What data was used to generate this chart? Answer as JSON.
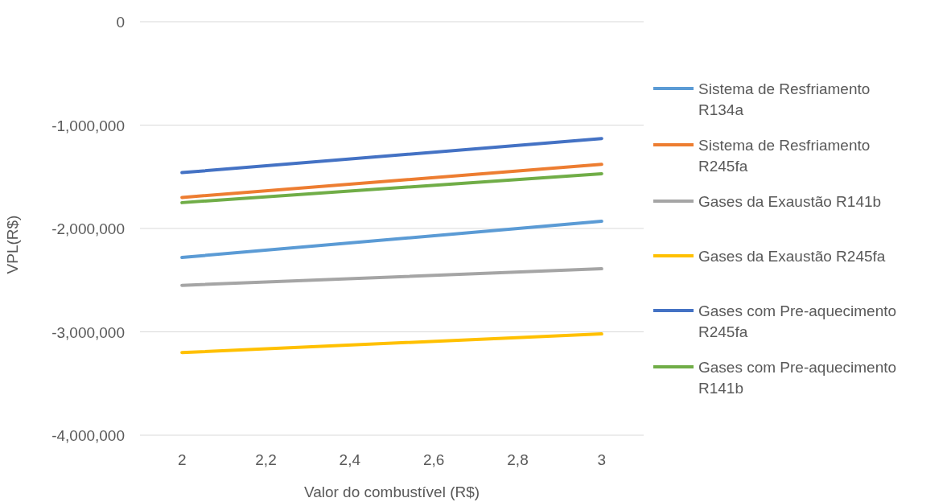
{
  "chart_data": {
    "type": "line",
    "xlabel": "Valor do combustível (R$)",
    "ylabel": "VPL(R$)",
    "xlim": [
      1.9,
      3.1
    ],
    "xticks": [
      {
        "value": 2,
        "label": "2"
      },
      {
        "value": 2.2,
        "label": "2,2"
      },
      {
        "value": 2.4,
        "label": "2,4"
      },
      {
        "value": 2.6,
        "label": "2,6"
      },
      {
        "value": 2.8,
        "label": "2,8"
      },
      {
        "value": 3,
        "label": "3"
      }
    ],
    "ylim": [
      -4000000,
      0
    ],
    "yticks": [
      {
        "value": -4000000,
        "label": "-4,000,000"
      },
      {
        "value": -3000000,
        "label": "-3,000,000"
      },
      {
        "value": -2000000,
        "label": "-2,000,000"
      },
      {
        "value": -1000000,
        "label": "-1,000,000"
      },
      {
        "value": 0,
        "label": "0"
      }
    ],
    "x": [
      2,
      3
    ],
    "grid": "y",
    "legend": "right",
    "marker": "none",
    "line_style": "solid",
    "series": [
      {
        "name": "Sistema de Resfriamento R134a",
        "color": "#5b9bd5",
        "values": [
          -2280000,
          -1930000
        ]
      },
      {
        "name": "Sistema de Resfriamento R245fa",
        "color": "#ed7d31",
        "values": [
          -1700000,
          -1380000
        ]
      },
      {
        "name": "Gases da Exaustão R141b",
        "color": "#a5a5a5",
        "values": [
          -2550000,
          -2390000
        ]
      },
      {
        "name": "Gases da Exaustão R245fa",
        "color": "#ffc000",
        "values": [
          -3200000,
          -3020000
        ]
      },
      {
        "name": "Gases com Pre-aquecimento R245fa",
        "color": "#4472c4",
        "values": [
          -1460000,
          -1130000
        ]
      },
      {
        "name": "Gases com Pre-aquecimento R141b",
        "color": "#70ad47",
        "values": [
          -1750000,
          -1470000
        ]
      }
    ]
  }
}
